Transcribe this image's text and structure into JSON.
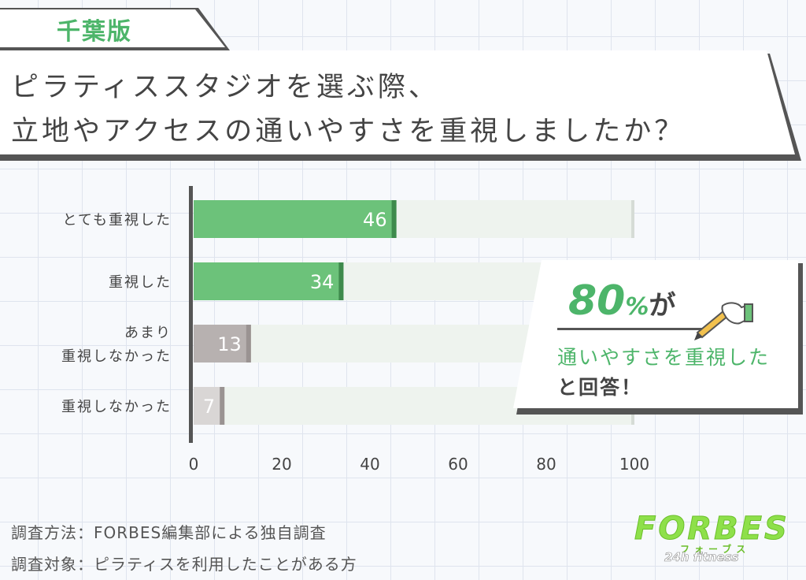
{
  "region": "千葉版",
  "title": {
    "line1": "ピラティススタジオを選ぶ際、",
    "line2": "立地やアクセスの通いやすさを重視しましたか？"
  },
  "chart_data": {
    "type": "bar",
    "orientation": "horizontal",
    "categories": [
      "とても重視した",
      "重視した",
      "あまり\n重視しなかった",
      "重視しなかった"
    ],
    "values": [
      46,
      34,
      13,
      7
    ],
    "xlim": [
      0,
      100
    ],
    "xticks": [
      0,
      20,
      40,
      60,
      80,
      100
    ],
    "colors": {
      "positive": "#6cc27a",
      "positive_edge": "#3e8a4c",
      "negative": "#b7b1b0",
      "negative_light": "#d9d6d5",
      "track": "#eef3ee",
      "axis": "#555555"
    },
    "grid": false,
    "legend": "none"
  },
  "callout": {
    "number": "80",
    "percent": "%",
    "particle": "が",
    "line2": "通いやすさを重視した",
    "line3": "と回答！",
    "icon": "pen-in-hand-icon"
  },
  "footnotes": {
    "method": "調査方法：FORBES編集部による独自調査",
    "target": "調査対象：ピラティスを利用したことがある方"
  },
  "logo": {
    "main": "FORBES",
    "kana": "フォーブス",
    "sub": "24h fitness"
  }
}
